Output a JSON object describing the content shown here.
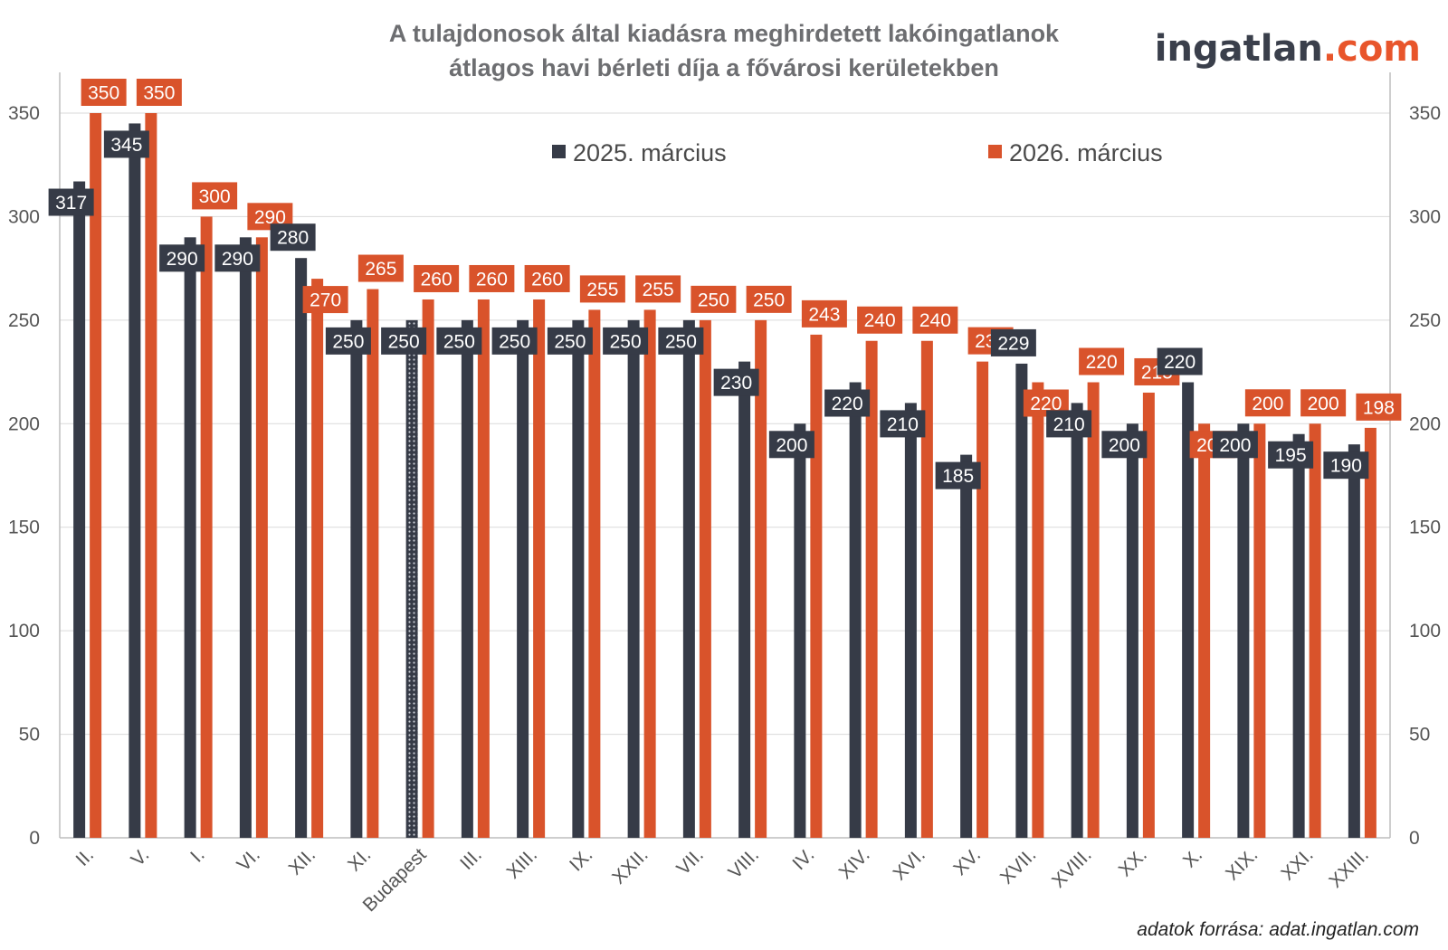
{
  "chart_data": {
    "type": "bar",
    "title_line1": "A tulajdonosok által kiadásra meghirdetett lakóingatlanok",
    "title_line2": "átlagos havi bérleti díja a fővárosi kerületekben",
    "categories": [
      "II.",
      "V.",
      "I.",
      "VI.",
      "XII.",
      "XI.",
      "Budapest",
      "III.",
      "XIII.",
      "IX.",
      "XXII.",
      "VII.",
      "VIII.",
      "IV.",
      "XIV.",
      "XVI.",
      "XV.",
      "XVII.",
      "XVIII.",
      "XX.",
      "X.",
      "XIX.",
      "XXI.",
      "XXIII."
    ],
    "series": [
      {
        "name": "2025. március",
        "color": "#363b47",
        "values": [
          317,
          345,
          290,
          290,
          280,
          250,
          250,
          250,
          250,
          250,
          250,
          250,
          230,
          200,
          220,
          210,
          185,
          229,
          210,
          200,
          220,
          200,
          195,
          190
        ]
      },
      {
        "name": "2026. március",
        "color": "#d9532b",
        "values": [
          350,
          350,
          300,
          290,
          270,
          265,
          260,
          260,
          260,
          255,
          255,
          250,
          250,
          243,
          240,
          240,
          230,
          220,
          220,
          215,
          200,
          200,
          200,
          198
        ]
      }
    ],
    "highlight_category": "Budapest",
    "ylim": [
      0,
      350
    ],
    "yticks": [
      0,
      50,
      100,
      150,
      200,
      250,
      300,
      350
    ],
    "grid": true,
    "legend_position": "top"
  },
  "logo": {
    "part1": "ingatlan",
    "part2": ".com"
  },
  "source": "adatok forrása: adat.ingatlan.com"
}
